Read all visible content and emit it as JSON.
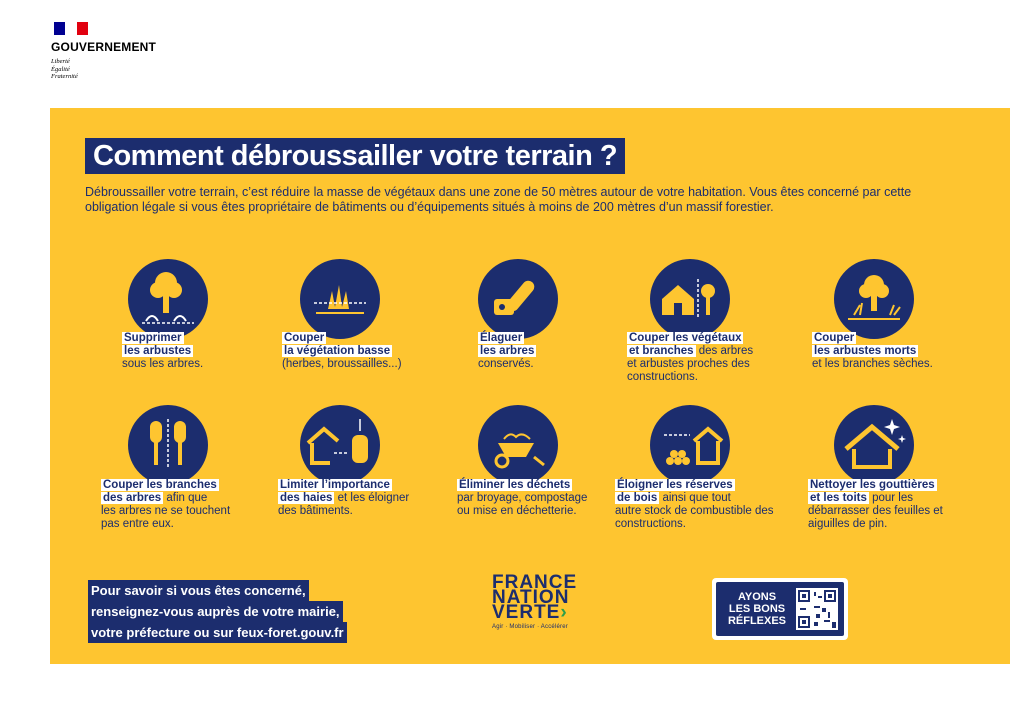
{
  "header": {
    "gov_name": "GOUVERNEMENT",
    "motto": [
      "Liberté",
      "Égalité",
      "Fraternité"
    ],
    "flag_colors": [
      "#000091",
      "#FFFFFF",
      "#E1000F"
    ]
  },
  "colors": {
    "background": "#FEC530",
    "navy": "#1C2D6E",
    "white": "#FFFFFF"
  },
  "main": {
    "title": "Comment débroussailler votre terrain ?",
    "intro": "Débroussailler votre terrain, c’est réduire la masse de végétaux dans une zone de 50 mètres autour de votre habitation. Vous êtes concerné par cette obligation légale si vous êtes propriétaire de bâtiments ou d’équipements situés à moins de 200 mètres d’un massif forestier."
  },
  "items": [
    {
      "icon": "tree-bushes-icon",
      "hl1": "Supprimer",
      "hl2": "les arbustes",
      "rest1": "",
      "rest2": "sous les arbres.",
      "rest3": ""
    },
    {
      "icon": "grass-cut-icon",
      "hl1": "Couper",
      "hl2": "la végétation basse",
      "rest1": "",
      "rest2": "(herbes, broussailles...)",
      "rest3": ""
    },
    {
      "icon": "chainsaw-icon",
      "hl1": "Élaguer",
      "hl2": "les arbres",
      "rest1": "",
      "rest2": "conservés.",
      "rest3": ""
    },
    {
      "icon": "house-tree-icon",
      "hl1": "Couper les végétaux",
      "hl2": "et branches",
      "rest1": "",
      "rest2": " des arbres",
      "rest3": "et arbustes proches des constructions."
    },
    {
      "icon": "dead-shrub-icon",
      "hl1": "Couper",
      "hl2": "les arbustes morts",
      "rest1": "",
      "rest2": "et les branches sèches.",
      "rest3": ""
    },
    {
      "icon": "trimmed-trees-icon",
      "hl1": "Couper les branches",
      "hl2": "des arbres",
      "rest1": "",
      "rest2": " afin que",
      "rest3": "les arbres ne se touchent pas entre eux."
    },
    {
      "icon": "hedge-house-icon",
      "hl1": "Limiter l’importance",
      "hl2": "des haies",
      "rest1": "",
      "rest2": " et les éloigner",
      "rest3": "des bâtiments."
    },
    {
      "icon": "wheelbarrow-icon",
      "hl1": "Éliminer les déchets",
      "hl2": "",
      "rest1": "",
      "rest2": "",
      "rest3": "par broyage, compostage ou mise en déchetterie."
    },
    {
      "icon": "woodpile-house-icon",
      "hl1": "Éloigner les réserves",
      "hl2": "de bois",
      "rest1": "",
      "rest2": " ainsi que tout",
      "rest3": "autre stock de combustible des constructions."
    },
    {
      "icon": "clean-roof-icon",
      "hl1": "Nettoyer les gouttières",
      "hl2": "et les toits",
      "rest1": "",
      "rest2": " pour les",
      "rest3": "débarrasser des feuilles et aiguilles de pin."
    }
  ],
  "footer": {
    "info_lines": [
      "Pour savoir si vous êtes concerné,",
      "renseignez-vous auprès de votre mairie,",
      "votre préfecture ou sur feux-foret.gouv.fr"
    ],
    "fnv_words": [
      "FRANCE",
      "NATION",
      "VERTE"
    ],
    "fnv_arrow": "›",
    "fnv_tagline": "Agir · Mobiliser · Accélérer",
    "abr_lines": [
      "AYONS",
      "LES BONS",
      "RÉFLEXES"
    ]
  }
}
